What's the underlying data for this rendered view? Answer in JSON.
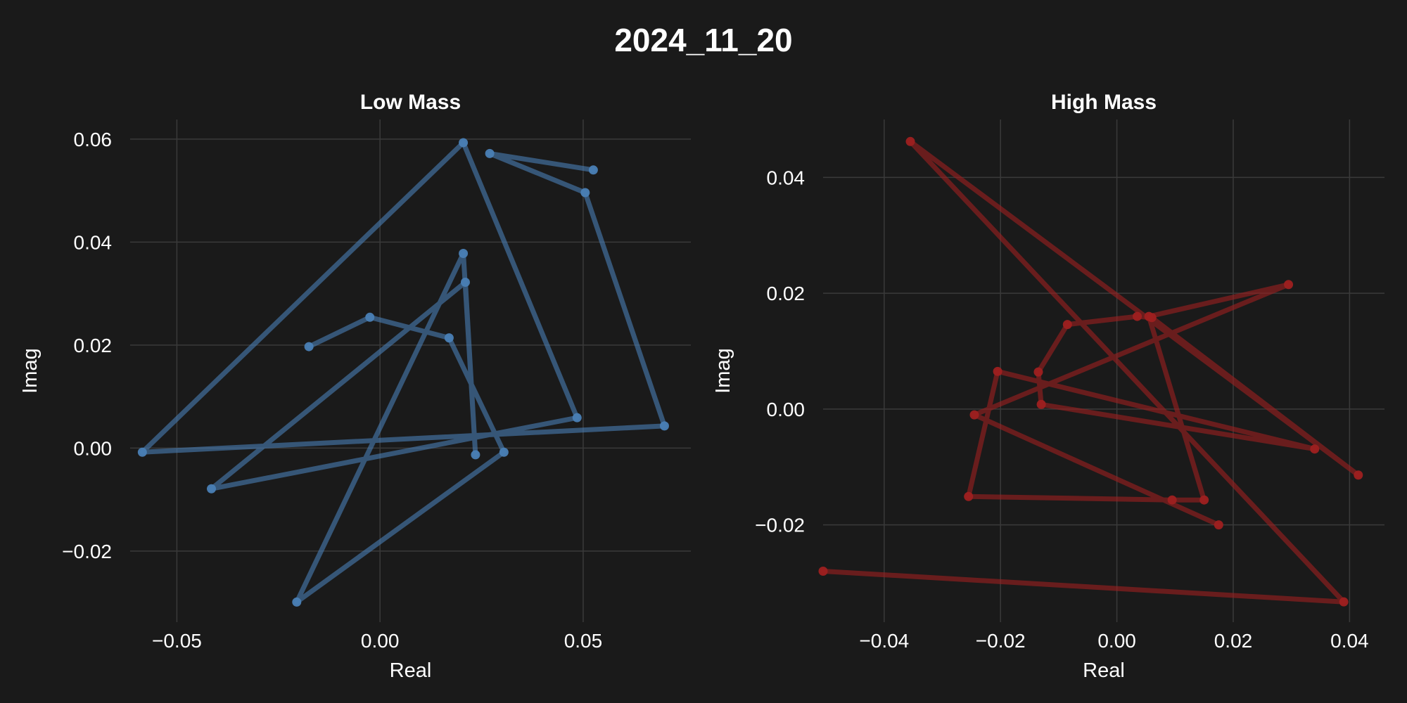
{
  "figure": {
    "suptitle": "2024_11_20",
    "background": "#1a1a1a"
  },
  "chart_data": [
    {
      "type": "line",
      "title": "Low Mass",
      "xlabel": "Real",
      "ylabel": "Imag",
      "color": "#4a7fb5",
      "xlim": [
        -0.0615,
        0.0765
      ],
      "ylim": [
        -0.0338,
        0.0638
      ],
      "xticks": [
        -0.05,
        0.0,
        0.05
      ],
      "xtick_labels": [
        "−0.05",
        "0.00",
        "0.05"
      ],
      "yticks": [
        -0.02,
        0.0,
        0.02,
        0.04,
        0.06
      ],
      "ytick_labels": [
        "−0.02",
        "0.00",
        "0.02",
        "0.04",
        "0.06"
      ],
      "grid": true,
      "series": [
        {
          "x": [
            -0.0175,
            -0.0025,
            0.017,
            0.0305,
            -0.0205,
            0.0205,
            0.0235,
            0.021,
            -0.0415,
            0.0485,
            0.0205,
            -0.0585,
            0.07,
            0.0505,
            0.027,
            0.0525
          ],
          "y": [
            0.0197,
            0.0254,
            0.0214,
            -0.0008,
            -0.0299,
            0.0378,
            -0.0013,
            0.0322,
            -0.0079,
            0.0059,
            0.0593,
            -0.0008,
            0.0043,
            0.0496,
            0.0572,
            0.054
          ]
        }
      ]
    },
    {
      "type": "line",
      "title": "High Mass",
      "xlabel": "Real",
      "ylabel": "Imag",
      "color": "#9e2020",
      "xlim": [
        -0.0505,
        0.046
      ],
      "ylim": [
        -0.0368,
        0.05
      ],
      "xticks": [
        -0.04,
        -0.02,
        0.0,
        0.02,
        0.04
      ],
      "xtick_labels": [
        "−0.04",
        "−0.02",
        "0.00",
        "0.02",
        "0.04"
      ],
      "yticks": [
        -0.02,
        0.0,
        0.02,
        0.04
      ],
      "ytick_labels": [
        "−0.02",
        "0.00",
        "0.02",
        "0.04"
      ],
      "grid": true,
      "series": [
        {
          "x": [
            -0.0505,
            0.039,
            -0.0355,
            0.0415,
            0.006,
            0.0035,
            -0.0085,
            -0.0135,
            -0.013,
            0.034,
            -0.0205,
            -0.0255,
            0.0095,
            0.015,
            0.0055,
            0.0295,
            -0.0245,
            0.0175
          ],
          "y": [
            -0.028,
            -0.0333,
            0.0462,
            -0.0114,
            0.0158,
            0.016,
            0.0146,
            0.0064,
            0.0008,
            -0.0069,
            0.0065,
            -0.0151,
            -0.0157,
            -0.0157,
            0.016,
            0.0215,
            -0.001,
            -0.02
          ]
        }
      ]
    }
  ]
}
